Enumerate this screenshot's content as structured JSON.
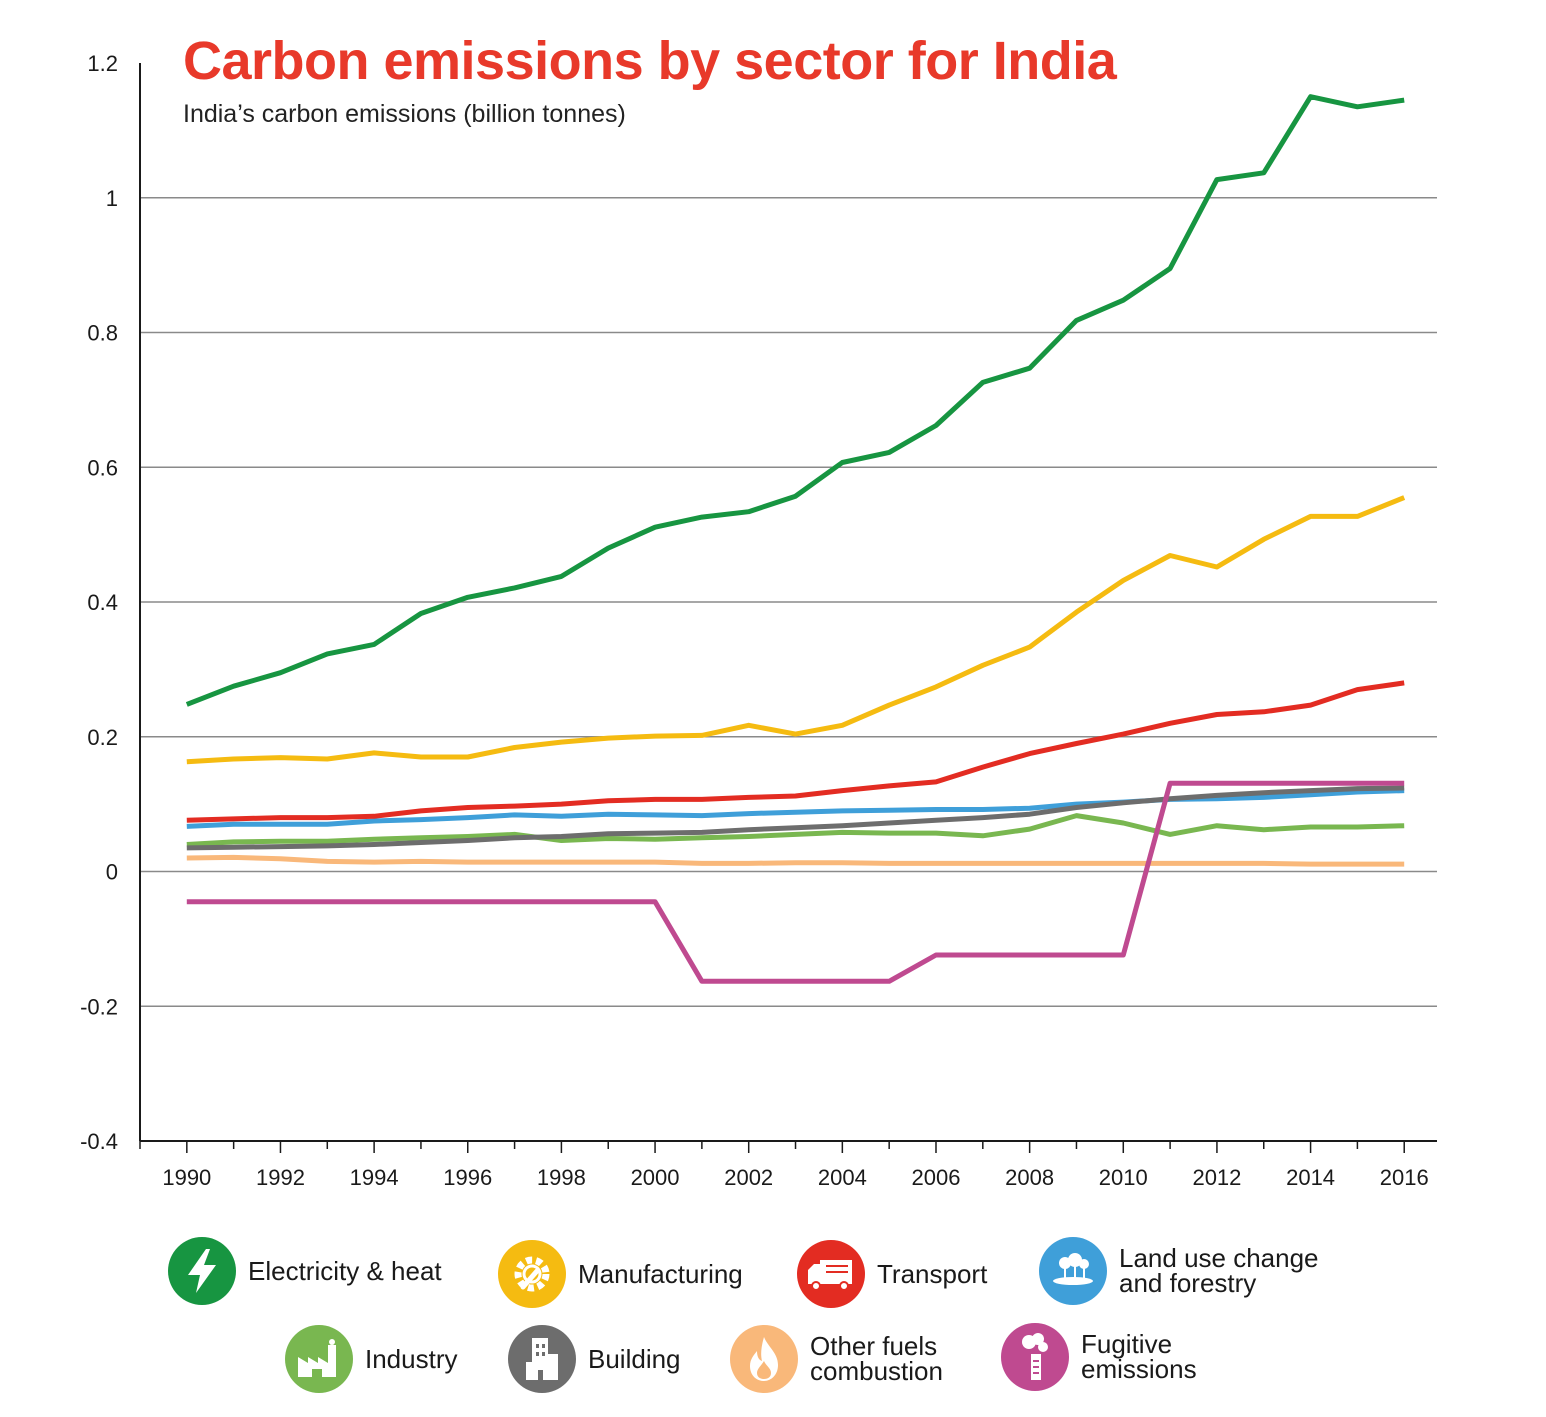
{
  "title": "Carbon emissions by sector for India",
  "subtitle": "India’s carbon emissions (billion tonnes)",
  "chart_data": {
    "type": "line",
    "x": [
      1990,
      1991,
      1992,
      1993,
      1994,
      1995,
      1996,
      1997,
      1998,
      1999,
      2000,
      2001,
      2002,
      2003,
      2004,
      2005,
      2006,
      2007,
      2008,
      2009,
      2010,
      2011,
      2012,
      2013,
      2014,
      2015,
      2016
    ],
    "xticks": [
      "1990",
      "1992",
      "1994",
      "1996",
      "1998",
      "2000",
      "2002",
      "2004",
      "2006",
      "2008",
      "2010",
      "2012",
      "2014",
      "2016"
    ],
    "yticks": [
      "-0.4",
      "-0.2",
      "0",
      "0.2",
      "0.4",
      "0.6",
      "0.8",
      "1",
      "1.2"
    ],
    "ylim": [
      -0.4,
      1.2
    ],
    "xlim": [
      1989,
      2016.7
    ],
    "grid": "horizontal",
    "legend_position": "bottom",
    "series": [
      {
        "name": "Electricity & heat",
        "color": "#179541",
        "values": [
          0.248,
          0.275,
          0.295,
          0.323,
          0.337,
          0.383,
          0.407,
          0.421,
          0.438,
          0.48,
          0.511,
          0.526,
          0.534,
          0.557,
          0.607,
          0.622,
          0.662,
          0.726,
          0.747,
          0.818,
          0.848,
          0.895,
          1.027,
          1.037,
          1.15,
          1.135,
          1.145
        ]
      },
      {
        "name": "Manufacturing",
        "color": "#f5bb11",
        "values": [
          0.163,
          0.167,
          0.169,
          0.167,
          0.176,
          0.17,
          0.17,
          0.184,
          0.192,
          0.198,
          0.201,
          0.202,
          0.217,
          0.204,
          0.217,
          0.247,
          0.274,
          0.306,
          0.333,
          0.385,
          0.432,
          0.469,
          0.452,
          0.493,
          0.527,
          0.527,
          0.555
        ]
      },
      {
        "name": "Transport",
        "color": "#e32c22",
        "values": [
          0.076,
          0.078,
          0.08,
          0.08,
          0.082,
          0.09,
          0.095,
          0.097,
          0.1,
          0.105,
          0.107,
          0.107,
          0.11,
          0.112,
          0.12,
          0.127,
          0.133,
          0.155,
          0.175,
          0.19,
          0.204,
          0.22,
          0.233,
          0.237,
          0.247,
          0.27,
          0.28
        ]
      },
      {
        "name": "Land use change\nand forestry",
        "color": "#3f9fd9",
        "values": [
          0.067,
          0.07,
          0.07,
          0.07,
          0.075,
          0.077,
          0.08,
          0.084,
          0.082,
          0.085,
          0.084,
          0.083,
          0.086,
          0.088,
          0.09,
          0.091,
          0.092,
          0.092,
          0.094,
          0.1,
          0.103,
          0.107,
          0.108,
          0.11,
          0.114,
          0.118,
          0.12
        ]
      },
      {
        "name": "Industry",
        "color": "#79b750",
        "values": [
          0.04,
          0.044,
          0.045,
          0.045,
          0.048,
          0.05,
          0.052,
          0.055,
          0.046,
          0.049,
          0.048,
          0.05,
          0.052,
          0.055,
          0.058,
          0.057,
          0.057,
          0.053,
          0.063,
          0.083,
          0.072,
          0.055,
          0.068,
          0.062,
          0.066,
          0.066,
          0.068
        ]
      },
      {
        "name": "Building",
        "color": "#6d6d6d",
        "values": [
          0.035,
          0.036,
          0.037,
          0.038,
          0.04,
          0.043,
          0.046,
          0.05,
          0.052,
          0.056,
          0.057,
          0.058,
          0.062,
          0.065,
          0.068,
          0.072,
          0.076,
          0.08,
          0.085,
          0.095,
          0.102,
          0.108,
          0.113,
          0.117,
          0.12,
          0.123,
          0.124
        ]
      },
      {
        "name": "Other fuels\ncombustion",
        "color": "#f9b87a",
        "values": [
          0.02,
          0.021,
          0.019,
          0.015,
          0.014,
          0.015,
          0.014,
          0.014,
          0.014,
          0.014,
          0.014,
          0.012,
          0.012,
          0.013,
          0.013,
          0.012,
          0.012,
          0.012,
          0.012,
          0.012,
          0.012,
          0.012,
          0.012,
          0.012,
          0.011,
          0.011,
          0.011
        ]
      },
      {
        "name": "Fugitive\nemissions",
        "color": "#bf4a90",
        "values": [
          -0.045,
          -0.045,
          -0.045,
          -0.045,
          -0.045,
          -0.045,
          -0.045,
          -0.045,
          -0.045,
          -0.045,
          -0.045,
          -0.163,
          -0.163,
          -0.163,
          -0.163,
          -0.163,
          -0.124,
          -0.124,
          -0.124,
          -0.124,
          -0.124,
          0.131,
          0.131,
          0.131,
          0.131,
          0.131,
          0.131
        ]
      }
    ]
  },
  "legend": [
    {
      "label": "Electricity & heat",
      "color": "#179541",
      "icon": "lightning-bolt-icon"
    },
    {
      "label": "Manufacturing",
      "color": "#f5bb11",
      "icon": "gear-wrench-icon"
    },
    {
      "label": "Transport",
      "color": "#e32c22",
      "icon": "truck-icon"
    },
    {
      "label": "Land use change\nand forestry",
      "color": "#3f9fd9",
      "icon": "trees-icon"
    },
    {
      "label": "Industry",
      "color": "#79b750",
      "icon": "factory-icon"
    },
    {
      "label": "Building",
      "color": "#6d6d6d",
      "icon": "building-icon"
    },
    {
      "label": "Other fuels\ncombustion",
      "color": "#f9b87a",
      "icon": "flame-icon"
    },
    {
      "label": "Fugitive\nemissions",
      "color": "#bf4a90",
      "icon": "smokestack-icon"
    }
  ]
}
